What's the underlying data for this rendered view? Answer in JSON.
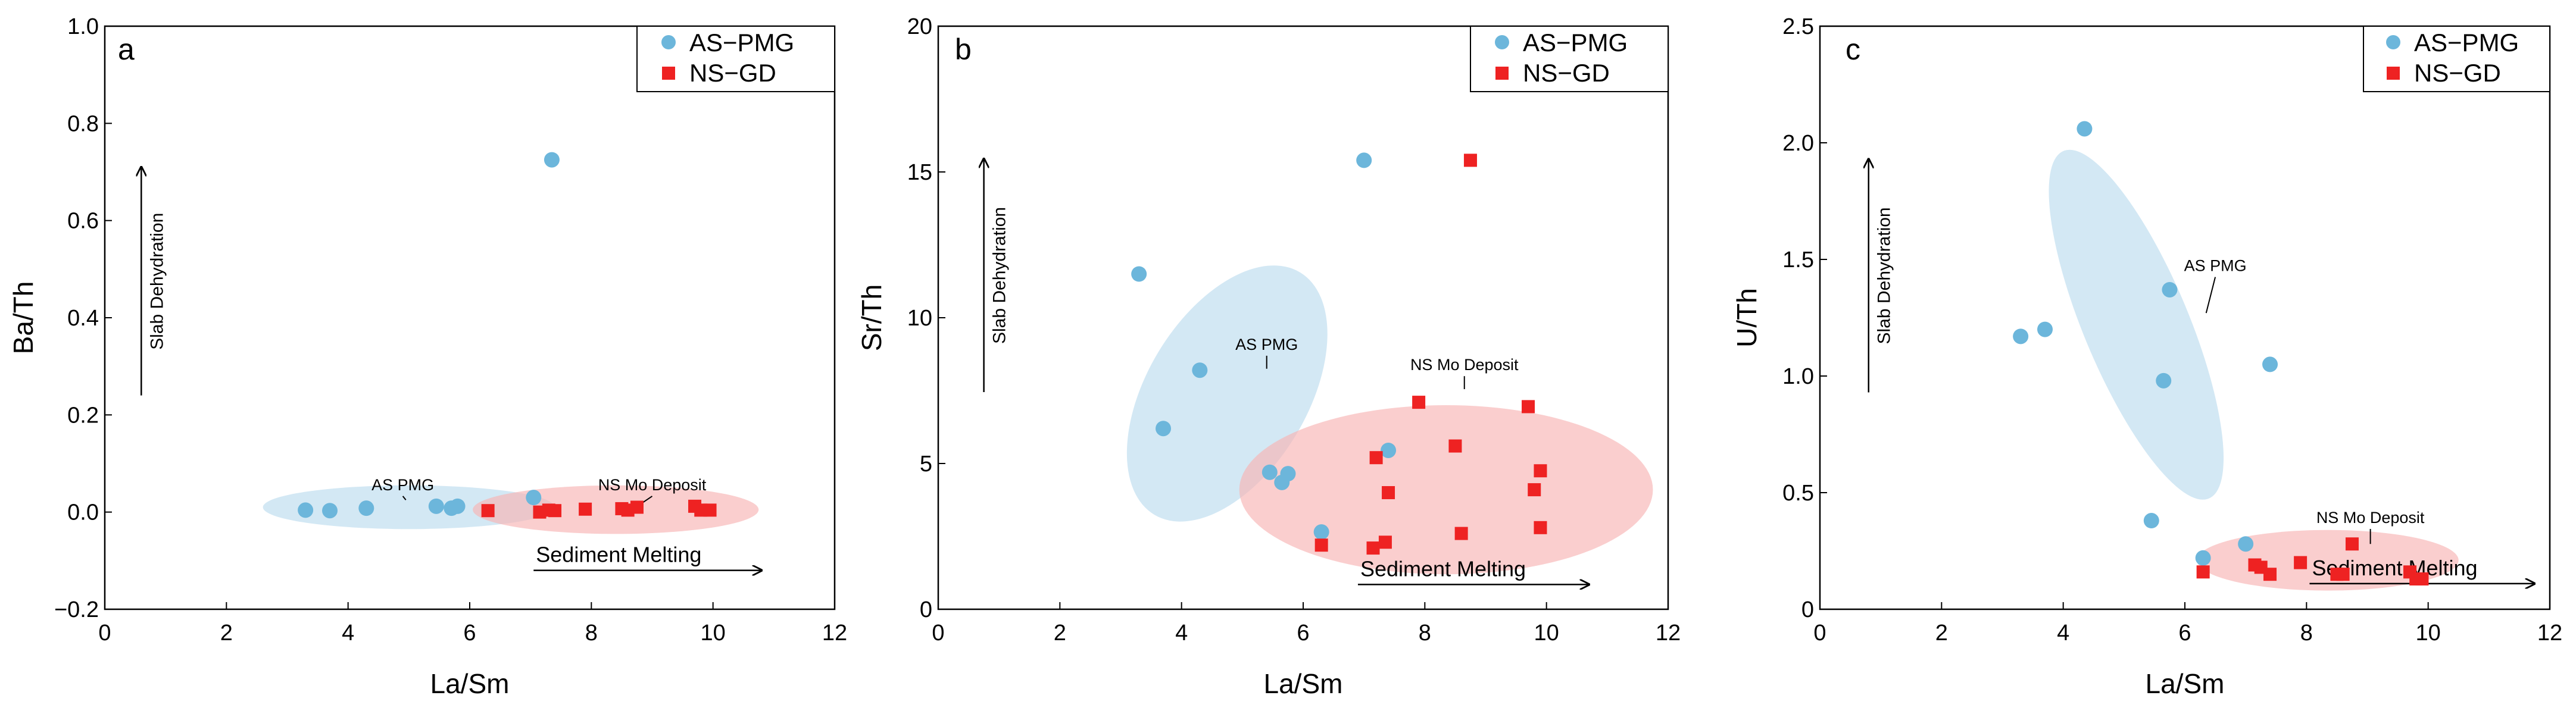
{
  "colors": {
    "as_pmg": "#6cb6db",
    "ns_gd": "#ee2222",
    "as_ellipse": "#bcdcee",
    "ns_ellipse": "#f8b4b4"
  },
  "chart_data": [
    {
      "type": "scatter",
      "panel_label": "a",
      "xlabel": "La/Sm",
      "ylabel": "Ba/Th",
      "xlim": [
        0,
        12
      ],
      "ylim": [
        -0.2,
        1.0
      ],
      "x_ticks": [
        0,
        2,
        4,
        6,
        8,
        10,
        12
      ],
      "x_tick_labels": [
        "0",
        "2",
        "4",
        "6",
        "8",
        "10",
        "12"
      ],
      "y_ticks": [
        -0.2,
        0.0,
        0.2,
        0.4,
        0.6,
        0.8,
        1.0
      ],
      "y_tick_labels": [
        "−0.2",
        "0.0",
        "0.2",
        "0.4",
        "0.6",
        "0.8",
        "1.0"
      ],
      "legend_position": "top-right",
      "series": [
        {
          "name": "AS−PMG",
          "marker": "circle",
          "points": [
            [
              3.3,
              0.004
            ],
            [
              3.7,
              0.003
            ],
            [
              4.3,
              0.008
            ],
            [
              5.45,
              0.012
            ],
            [
              5.7,
              0.008
            ],
            [
              5.8,
              0.012
            ],
            [
              7.05,
              0.03
            ],
            [
              7.35,
              0.725
            ]
          ]
        },
        {
          "name": "NS−GD",
          "marker": "square",
          "points": [
            [
              6.3,
              0.003
            ],
            [
              7.15,
              0.0
            ],
            [
              7.3,
              0.004
            ],
            [
              7.4,
              0.003
            ],
            [
              7.9,
              0.006
            ],
            [
              8.5,
              0.007
            ],
            [
              8.6,
              0.004
            ],
            [
              8.75,
              0.01
            ],
            [
              9.7,
              0.012
            ],
            [
              9.8,
              0.004
            ],
            [
              9.95,
              0.004
            ]
          ]
        }
      ],
      "ellipses": [
        {
          "name": "as",
          "cx": 5.0,
          "cy": 0.01,
          "rx": 2.4,
          "ry": 0.045,
          "angle_deg": 0
        },
        {
          "name": "ns",
          "cx": 8.4,
          "cy": 0.005,
          "rx": 2.35,
          "ry": 0.05,
          "angle_deg": 0
        }
      ],
      "annotations": [
        {
          "text": "AS PMG",
          "x": 4.9,
          "y": 0.045,
          "lead_to": [
            4.95,
            0.025
          ]
        },
        {
          "text": "NS Mo Deposit",
          "x": 9.0,
          "y": 0.045,
          "lead_to": [
            8.85,
            0.02
          ]
        },
        {
          "text": "Slab Dehydration",
          "arrow": "up",
          "x": 0.6,
          "y_from": 0.24,
          "y_to": 0.71
        },
        {
          "text": "Sediment Melting",
          "arrow": "right",
          "y": -0.12,
          "x_from": 7.05,
          "x_to": 10.8
        }
      ]
    },
    {
      "type": "scatter",
      "panel_label": "b",
      "xlabel": "La/Sm",
      "ylabel": "Sr/Th",
      "xlim": [
        0,
        12
      ],
      "ylim": [
        0,
        20
      ],
      "x_ticks": [
        0,
        2,
        4,
        6,
        8,
        10,
        12
      ],
      "x_tick_labels": [
        "0",
        "2",
        "4",
        "6",
        "8",
        "10",
        "12"
      ],
      "y_ticks": [
        0,
        5,
        10,
        15,
        20
      ],
      "y_tick_labels": [
        "0",
        "5",
        "10",
        "15",
        "20"
      ],
      "legend_position": "top-right",
      "series": [
        {
          "name": "AS−PMG",
          "marker": "circle",
          "points": [
            [
              3.3,
              11.5
            ],
            [
              3.7,
              6.2
            ],
            [
              4.3,
              8.2
            ],
            [
              5.45,
              4.7
            ],
            [
              5.65,
              4.35
            ],
            [
              5.75,
              4.65
            ],
            [
              6.3,
              2.65
            ],
            [
              7.0,
              15.4
            ],
            [
              7.4,
              5.45
            ]
          ]
        },
        {
          "name": "NS−GD",
          "marker": "square",
          "points": [
            [
              6.3,
              2.2
            ],
            [
              7.15,
              2.1
            ],
            [
              7.2,
              5.2
            ],
            [
              7.35,
              2.3
            ],
            [
              7.4,
              4.0
            ],
            [
              7.9,
              7.1
            ],
            [
              8.5,
              5.6
            ],
            [
              8.6,
              2.6
            ],
            [
              8.75,
              15.4
            ],
            [
              9.7,
              6.95
            ],
            [
              9.8,
              4.1
            ],
            [
              9.9,
              2.8
            ],
            [
              9.9,
              4.75
            ]
          ]
        }
      ],
      "ellipses": [
        {
          "name": "as",
          "cx": 4.75,
          "cy": 7.4,
          "rx": 5.4,
          "ry": 1.35,
          "angle_deg": -59
        },
        {
          "name": "ns",
          "cx": 8.35,
          "cy": 4.1,
          "rx": 3.4,
          "ry": 2.9,
          "angle_deg": 0
        }
      ],
      "annotations": [
        {
          "text": "AS PMG",
          "x": 5.4,
          "y": 8.9,
          "lead_to": [
            5.4,
            8.25
          ]
        },
        {
          "text": "NS Mo Deposit",
          "x": 8.65,
          "y": 8.2,
          "lead_to": [
            8.65,
            7.55
          ]
        },
        {
          "text": "Slab Dehydration",
          "arrow": "up",
          "x": 0.75,
          "y_from": 7.45,
          "y_to": 15.45
        },
        {
          "text": "Sediment Melting",
          "arrow": "right",
          "y": 0.85,
          "x_from": 6.9,
          "x_to": 10.7
        }
      ]
    },
    {
      "type": "scatter",
      "panel_label": "c",
      "xlabel": "La/Sm",
      "ylabel": "U/Th",
      "xlim": [
        0,
        12
      ],
      "ylim": [
        0,
        2.5
      ],
      "x_ticks": [
        0,
        2,
        4,
        6,
        8,
        10,
        12
      ],
      "x_tick_labels": [
        "0",
        "2",
        "4",
        "6",
        "8",
        "10",
        "12"
      ],
      "y_ticks": [
        0,
        0.5,
        1.0,
        1.5,
        2.0,
        2.5
      ],
      "y_tick_labels": [
        "0",
        "0.5",
        "1.0",
        "1.5",
        "2.0",
        "2.5"
      ],
      "legend_position": "top-right",
      "series": [
        {
          "name": "AS−PMG",
          "marker": "circle",
          "points": [
            [
              3.3,
              1.17
            ],
            [
              3.7,
              1.2
            ],
            [
              4.35,
              2.06
            ],
            [
              5.45,
              0.38
            ],
            [
              5.65,
              0.98
            ],
            [
              5.75,
              1.37
            ],
            [
              6.3,
              0.22
            ],
            [
              7.0,
              0.28
            ],
            [
              7.4,
              1.05
            ]
          ]
        },
        {
          "name": "NS−GD",
          "marker": "square",
          "points": [
            [
              6.3,
              0.16
            ],
            [
              7.15,
              0.19
            ],
            [
              7.25,
              0.18
            ],
            [
              7.4,
              0.15
            ],
            [
              7.9,
              0.2
            ],
            [
              8.5,
              0.15
            ],
            [
              8.6,
              0.15
            ],
            [
              8.75,
              0.28
            ],
            [
              9.7,
              0.16
            ],
            [
              9.8,
              0.13
            ],
            [
              9.9,
              0.13
            ]
          ]
        }
      ],
      "ellipses": [
        {
          "name": "as",
          "cx": 5.2,
          "cy": 1.22,
          "rx": 0.93,
          "ry": 0.75,
          "angle_deg": 0,
          "tilt_dx_per_dy": -1.46
        },
        {
          "name": "ns",
          "cx": 8.35,
          "cy": 0.21,
          "rx": 2.15,
          "ry": 0.13,
          "angle_deg": 0
        }
      ],
      "annotations": [
        {
          "text": "AS PMG",
          "x": 6.5,
          "y": 1.45,
          "lead_to": [
            6.35,
            1.27
          ]
        },
        {
          "text": "NS Mo Deposit",
          "x": 9.05,
          "y": 0.37,
          "lead_to": [
            9.05,
            0.28
          ]
        },
        {
          "text": "Slab Dehydration",
          "arrow": "up",
          "x": 0.8,
          "y_from": 0.93,
          "y_to": 1.93
        },
        {
          "text": "Sediment Melting",
          "arrow": "right",
          "y": 0.11,
          "x_from": 8.05,
          "x_to": 11.75
        }
      ]
    }
  ]
}
